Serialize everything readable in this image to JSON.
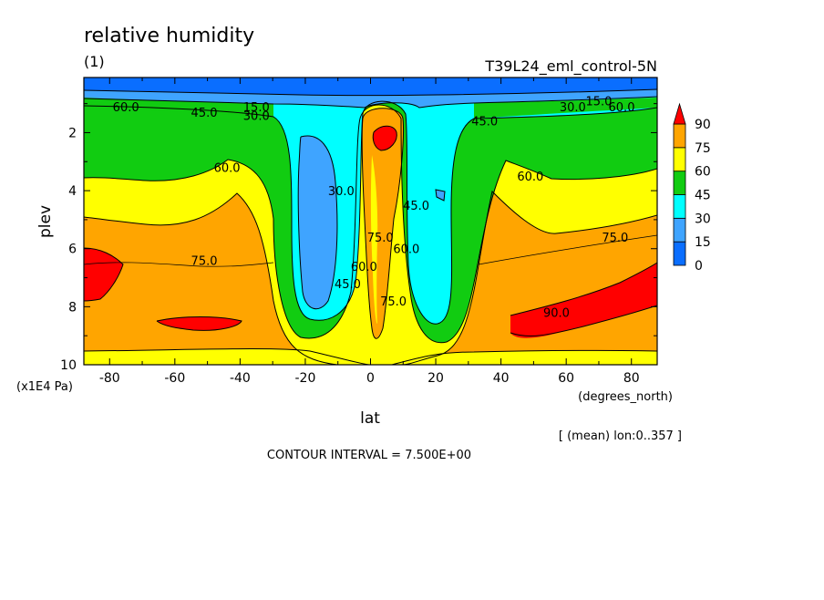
{
  "header": {
    "title": "relative humidity",
    "subtitle": "(1)",
    "experiment": "T39L24_eml_control-5N"
  },
  "footer": {
    "mean_note": "[ (mean) lon:0..357 ]",
    "contour_interval": "CONTOUR INTERVAL = 7.500E+00"
  },
  "chart_data": {
    "type": "heatmap",
    "title": "relative humidity",
    "xlabel": "lat",
    "xunits": "(degrees_north)",
    "ylabel": "plev",
    "yunits": "(x1E4 Pa)",
    "xlim": [
      -87.9,
      87.9
    ],
    "ylim": [
      10,
      0.1
    ],
    "x_ticks": [
      -80,
      -60,
      -40,
      -20,
      0,
      20,
      40,
      60,
      80
    ],
    "x_tick_labels": [
      "-80",
      "-60",
      "-40",
      "-20",
      "0",
      "20",
      "40",
      "60",
      "80"
    ],
    "y_ticks": [
      2,
      4,
      6,
      8,
      10
    ],
    "y_tick_labels": [
      "2",
      "4",
      "6",
      "8",
      "10"
    ],
    "colorbar": {
      "levels": [
        0,
        15,
        30,
        45,
        60,
        75,
        90
      ],
      "labels": [
        "0",
        "15",
        "30",
        "45",
        "60",
        "75",
        "90"
      ],
      "colors": [
        "#0a6eff",
        "#3fa4ff",
        "#00ffff",
        "#11cc11",
        "#ffff00",
        "#ffa500",
        "#ff0000"
      ]
    },
    "contour_labels": [
      {
        "text": "60.0",
        "lat": -75,
        "plev": 1.1
      },
      {
        "text": "45.0",
        "lat": -51,
        "plev": 1.3
      },
      {
        "text": "15.0",
        "lat": -35,
        "plev": 1.1
      },
      {
        "text": "30.0",
        "lat": -35,
        "plev": 1.4
      },
      {
        "text": "60.0",
        "lat": -44,
        "plev": 3.2
      },
      {
        "text": "30.0",
        "lat": -9,
        "plev": 4.0
      },
      {
        "text": "75.0",
        "lat": -51,
        "plev": 6.4
      },
      {
        "text": "45.0",
        "lat": -7,
        "plev": 7.2
      },
      {
        "text": "60.0",
        "lat": -2,
        "plev": 6.6
      },
      {
        "text": "75.0",
        "lat": 3,
        "plev": 5.6
      },
      {
        "text": "45.0",
        "lat": 14,
        "plev": 4.5
      },
      {
        "text": "60.0",
        "lat": 11,
        "plev": 6.0
      },
      {
        "text": "75.0",
        "lat": 7,
        "plev": 7.8
      },
      {
        "text": "45.0",
        "lat": 35,
        "plev": 1.6
      },
      {
        "text": "30.0",
        "lat": 62,
        "plev": 1.1
      },
      {
        "text": "15.0",
        "lat": 70,
        "plev": 0.9
      },
      {
        "text": "60.0",
        "lat": 77,
        "plev": 1.1
      },
      {
        "text": "60.0",
        "lat": 49,
        "plev": 3.5
      },
      {
        "text": "75.0",
        "lat": 75,
        "plev": 5.6
      },
      {
        "text": "90.0",
        "lat": 57,
        "plev": 8.2
      }
    ]
  }
}
